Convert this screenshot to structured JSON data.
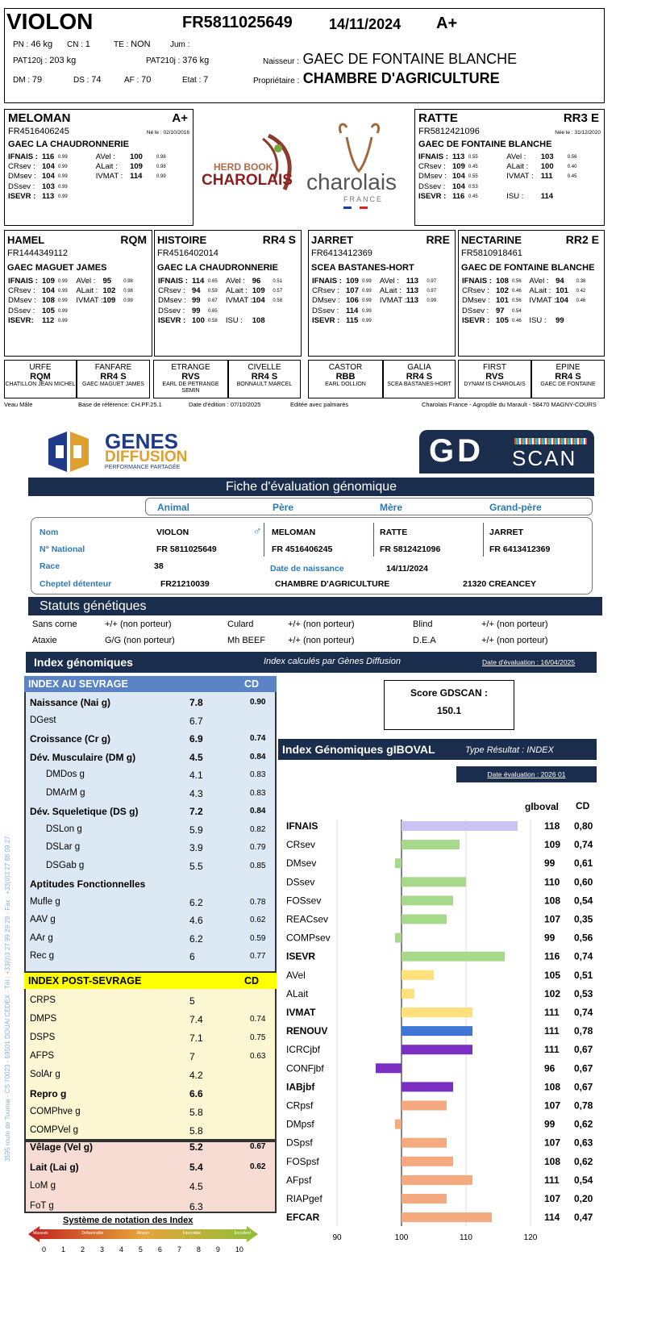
{
  "top": {
    "name": "VIOLON",
    "num": "FR5811025649",
    "date": "14/11/2024",
    "grade": "A+",
    "r1": [
      {
        "l": "PN :",
        "v": "46 kg"
      },
      {
        "l": "CN :",
        "v": "1"
      },
      {
        "l": "TE :",
        "v": "NON"
      },
      {
        "l": "Jum :",
        "v": ""
      }
    ],
    "pat120": {
      "l": "PAT120j :",
      "v": "203 kg"
    },
    "pat210": {
      "l": "PAT210j :",
      "v": "376 kg"
    },
    "r3": [
      {
        "l": "DM :",
        "v": "79"
      },
      {
        "l": "DS :",
        "v": "74"
      },
      {
        "l": "AF :",
        "v": "70"
      },
      {
        "l": "Etat :",
        "v": "7"
      }
    ],
    "naisseur_l": "Naisseur :",
    "naisseur": "GAEC DE FONTAINE BLANCHE",
    "proprio_l": "Propriétaire :",
    "proprio": "CHAMBRE D'AGRICULTURE"
  },
  "logos": {
    "hb1": "HERD BOOK",
    "hb2": "CHAROLAIS",
    "ch1": "charolais",
    "ch2": "FRANCE"
  },
  "parents": [
    {
      "name": "MELOMAN",
      "grade": "A+",
      "num": "FR4516406245",
      "born": "Né le : 02/10/2016",
      "owner": "GAEC LA CHAUDRONNERIE",
      "rows": [
        [
          "IFNAIS :",
          "116",
          "0.99",
          "AVel :",
          "100",
          "0.98"
        ],
        [
          "CRsev :",
          "104",
          "0.99",
          "ALait :",
          "109",
          "0.98"
        ],
        [
          "DMsev :",
          "104",
          "0.99",
          "IVMAT :",
          "114",
          "0.99"
        ],
        [
          "DSsev :",
          "103",
          "0.99",
          "",
          "",
          ""
        ],
        [
          "ISEVR :",
          "113",
          "0.99",
          "",
          "",
          ""
        ]
      ]
    },
    {
      "name": "RATTE",
      "grade": "RR3 E",
      "num": "FR5812421096",
      "born": "Née le : 31/12/2020",
      "owner": "GAEC DE FONTAINE BLANCHE",
      "rows": [
        [
          "IFNAIS :",
          "113",
          "0.55",
          "AVel :",
          "103",
          "0.56"
        ],
        [
          "CRsev :",
          "109",
          "0.45",
          "ALait :",
          "100",
          "0.40"
        ],
        [
          "DMsev :",
          "104",
          "0.55",
          "IVMAT :",
          "111",
          "0.45"
        ],
        [
          "DSsev :",
          "104",
          "0.53",
          "",
          "",
          ""
        ],
        [
          "ISEVR :",
          "116",
          "0.45",
          "ISU :",
          "114",
          ""
        ]
      ]
    }
  ],
  "grand": [
    {
      "name": "HAMEL",
      "grade": "RQM",
      "num": "FR1444349112",
      "owner": "GAEC MAGUET JAMES",
      "rows": [
        [
          "IFNAIS :",
          "109",
          "0.99",
          "AVel :",
          "95",
          "0.98"
        ],
        [
          "CRsev :",
          "104",
          "0.99",
          "ALait :",
          "102",
          "0.98"
        ],
        [
          "DMsev :",
          "108",
          "0.99",
          "IVMAT :",
          "109",
          "0.99"
        ],
        [
          "DSsev :",
          "105",
          "0.99",
          "",
          "",
          ""
        ],
        [
          "ISEVR:",
          "112",
          "0.99",
          "",
          "",
          ""
        ]
      ]
    },
    {
      "name": "HISTOIRE",
      "grade": "RR4 S",
      "num": "FR4516402014",
      "owner": "GAEC LA CHAUDRONNERIE",
      "rows": [
        [
          "IFNAIS :",
          "114",
          "0.65",
          "AVel :",
          "96",
          "0.51"
        ],
        [
          "CRsev :",
          "94",
          "0.59",
          "ALait :",
          "109",
          "0.57"
        ],
        [
          "DMsev :",
          "99",
          "0.67",
          "IVMAT :",
          "104",
          "0.58"
        ],
        [
          "DSsev :",
          "99",
          "0.65",
          "",
          "",
          ""
        ],
        [
          "ISEVR :",
          "100",
          "0.58",
          "ISU :",
          "108",
          ""
        ]
      ]
    },
    {
      "name": "JARRET",
      "grade": "RRE",
      "num": "FR6413412369",
      "owner": "SCEA BASTANES-HORT",
      "rows": [
        [
          "IFNAIS :",
          "109",
          "0.99",
          "AVel :",
          "113",
          "0.97"
        ],
        [
          "CRsev :",
          "107",
          "0.99",
          "ALait :",
          "113",
          "0.97"
        ],
        [
          "DMsev :",
          "106",
          "0.99",
          "IVMAT :",
          "113",
          "0.99"
        ],
        [
          "DSsev :",
          "114",
          "0.99",
          "",
          "",
          ""
        ],
        [
          "ISEVR :",
          "115",
          "0.99",
          "",
          "",
          ""
        ]
      ]
    },
    {
      "name": "NECTARINE",
      "grade": "RR2 E",
      "num": "FR5810918461",
      "owner": "GAEC DE FONTAINE BLANCHE",
      "rows": [
        [
          "IFNAIS :",
          "108",
          "0.56",
          "AVel :",
          "94",
          "0.38"
        ],
        [
          "CRsev :",
          "102",
          "0.46",
          "ALait :",
          "101",
          "0.42"
        ],
        [
          "DMsev :",
          "101",
          "0.56",
          "IVMAT :",
          "104",
          "0.46"
        ],
        [
          "DSsev :",
          "97",
          "0.54",
          "",
          "",
          ""
        ],
        [
          "ISEVR :",
          "105",
          "0.46",
          "ISU :",
          "99",
          ""
        ]
      ]
    }
  ],
  "ggp": [
    {
      "n": "URFE",
      "g": "RQM",
      "o": "CHATILLON JEAN MICHEL"
    },
    {
      "n": "FANFARE",
      "g": "RR4 S",
      "o": "GAEC MAGUET JAMES"
    },
    {
      "n": "ETRANGE",
      "g": "RVS",
      "o": "EARL DE PETRANGE SEMIN"
    },
    {
      "n": "CIVELLE",
      "g": "RR4 S",
      "o": "BONNAULT MARCEL"
    },
    {
      "n": "CASTOR",
      "g": "RBB",
      "o": "EARL DOLLION"
    },
    {
      "n": "GALIA",
      "g": "RR4 S",
      "o": "SCEA BASTANES-HORT"
    },
    {
      "n": "FIRST",
      "g": "RVS",
      "o": "DYNAM IS CHAROLAIS"
    },
    {
      "n": "EPINE",
      "g": "RR4 S",
      "o": "GAEC DE FONTAINE"
    }
  ],
  "footer": {
    "a": "Veau Mâle",
    "b": "Base de référence: CH.PF.25.1",
    "c": "Date d'édition : 07/10/2025",
    "d": "Editée avec palmarès",
    "e": "Charolais France - Agropôle du Marault - 58470 MAGNY-COURS"
  },
  "gd": {
    "logo1": "GENES",
    "logo2": "DIFFUSION",
    "logo3": "PERFORMANCE PARTAGÉE",
    "scan1": "GD",
    "scan2": "SCAN",
    "fiche": "Fiche d'évaluation génomique",
    "cols": [
      "Animal",
      "Père",
      "Mère",
      "Grand-père"
    ],
    "nom_l": "Nom",
    "nat_l": "N° National",
    "race_l": "Race",
    "chep_l": "Cheptel détenteur",
    "nom": [
      "VIOLON",
      "MELOMAN",
      "RATTE",
      "JARRET"
    ],
    "nat": [
      "FR 5811025649",
      "FR 4516406245",
      "FR 5812421096",
      "FR 6413412369"
    ],
    "race": "38",
    "dn_l": "Date de naissance",
    "dn": "14/11/2024",
    "chep": "FR21210039",
    "chep2": "CHAMBRE D'AGRICULTURE",
    "chep3": "21320 CREANCEY",
    "statuts": "Statuts génétiques",
    "st": [
      [
        "Sans corne",
        "+/+ (non porteur)",
        "Culard",
        "+/+ (non porteur)",
        "Blind",
        "+/+ (non porteur)"
      ],
      [
        "Ataxie",
        "G/G (non porteur)",
        "Mh BEEF",
        "+/+ (non porteur)",
        "D.E.A",
        "+/+ (non porteur)"
      ]
    ],
    "idx_title": "Index génomiques",
    "idx_calc": "Index calculés par Gènes Diffusion",
    "idx_date": "Date d'évaluation : 16/04/2025",
    "sev_title": "INDEX AU SEVRAGE",
    "cd": "CD",
    "sev": [
      {
        "l": "Naissance (Nai g)",
        "v": "7.8",
        "c": "0.90",
        "b": 1,
        "i": 0
      },
      {
        "l": "DGest",
        "v": "6.7",
        "c": "",
        "b": 0,
        "i": 0
      },
      {
        "l": "Croissance (Cr g)",
        "v": "6.9",
        "c": "0.74",
        "b": 1,
        "i": 0
      },
      {
        "l": "Dév. Musculaire (DM g)",
        "v": "4.5",
        "c": "0.84",
        "b": 1,
        "i": 0
      },
      {
        "l": "DMDos g",
        "v": "4.1",
        "c": "0.83",
        "b": 0,
        "i": 1
      },
      {
        "l": "DMArM g",
        "v": "4.3",
        "c": "0.83",
        "b": 0,
        "i": 1
      },
      {
        "l": "Dév. Squeletique (DS g)",
        "v": "7.2",
        "c": "0.84",
        "b": 1,
        "i": 0
      },
      {
        "l": "DSLon g",
        "v": "5.9",
        "c": "0.82",
        "b": 0,
        "i": 1
      },
      {
        "l": "DSLar g",
        "v": "3.9",
        "c": "0.79",
        "b": 0,
        "i": 1
      },
      {
        "l": "DSGab g",
        "v": "5.5",
        "c": "0.85",
        "b": 0,
        "i": 1
      },
      {
        "l": "Aptitudes Fonctionnelles",
        "v": "",
        "c": "",
        "b": 1,
        "i": 0
      },
      {
        "l": "Mufle g",
        "v": "6.2",
        "c": "0.78",
        "b": 0,
        "i": 0
      },
      {
        "l": "AAV g",
        "v": "4.6",
        "c": "0.62",
        "b": 0,
        "i": 0
      },
      {
        "l": "AAr g",
        "v": "6.2",
        "c": "0.59",
        "b": 0,
        "i": 0
      },
      {
        "l": "Rec g",
        "v": "6",
        "c": "0.77",
        "b": 0,
        "i": 0
      }
    ],
    "post_title": "INDEX POST-SEVRAGE",
    "post": [
      {
        "l": "CRPS",
        "v": "5",
        "c": "",
        "b": 0
      },
      {
        "l": "DMPS",
        "v": "7.4",
        "c": "0.74",
        "b": 0
      },
      {
        "l": "DSPS",
        "v": "7.1",
        "c": "0.75",
        "b": 0
      },
      {
        "l": "AFPS",
        "v": "7",
        "c": "0.63",
        "b": 0
      },
      {
        "l": "SolAr g",
        "v": "4.2",
        "c": "",
        "b": 0
      },
      {
        "l": "Repro g",
        "v": "6.6",
        "c": "",
        "b": 1
      },
      {
        "l": "COMPhve g",
        "v": "5.8",
        "c": "",
        "b": 0
      },
      {
        "l": "COMPVel g",
        "v": "5.8",
        "c": "",
        "b": 0
      }
    ],
    "vel": [
      {
        "l": "Vêlage (Vel g)",
        "v": "5.2",
        "c": "0.67",
        "b": 1
      },
      {
        "l": "Lait (Lai g)",
        "v": "5.4",
        "c": "0.62",
        "b": 1
      },
      {
        "l": "LoM g",
        "v": "4.5",
        "c": "",
        "b": 0
      },
      {
        "l": "FoT g",
        "v": "6.3",
        "c": "",
        "b": 0
      }
    ],
    "notation": "Système de notation des Index",
    "scale": [
      "Mauvais",
      "Défavorable",
      "Moyen",
      "Favorable",
      "Excellent"
    ],
    "scale_nums": [
      "0",
      "1",
      "2",
      "3",
      "4",
      "5",
      "6",
      "7",
      "8",
      "9",
      "10"
    ],
    "score_l": "Score GDSCAN :",
    "score": "150.1",
    "gib_title": "Index Génomiques gIBOVAL",
    "gib_type": "Type Résultat : INDEX",
    "gib_date": "Date évaluation : 2026 01",
    "col_g": "glboval",
    "col_cd": "CD",
    "side": "3595 route de Tournai - CS 70023 - 59501 DOUAI CEDEX - Tél : +33(0)3 27 99 29 29 - Fax : +33(0)3 27 88 09 27"
  },
  "chart_data": {
    "type": "bar",
    "xlim": [
      90,
      120
    ],
    "xticks": [
      "90",
      "100",
      "110",
      "120"
    ],
    "bars": [
      {
        "k": "IFNAIS",
        "v": 118,
        "cd": "0,80",
        "b": 1,
        "col": "#c9c3f2"
      },
      {
        "k": "CRsev",
        "v": 109,
        "cd": "0,74",
        "b": 0,
        "col": "#a6d98a"
      },
      {
        "k": "DMsev",
        "v": 99,
        "cd": "0,61",
        "b": 0,
        "col": "#a6d98a"
      },
      {
        "k": "DSsev",
        "v": 110,
        "cd": "0,60",
        "b": 0,
        "col": "#a6d98a"
      },
      {
        "k": "FOSsev",
        "v": 108,
        "cd": "0,54",
        "b": 0,
        "col": "#a6d98a"
      },
      {
        "k": "REACsev",
        "v": 107,
        "cd": "0,35",
        "b": 0,
        "col": "#a6d98a"
      },
      {
        "k": "COMPsev",
        "v": 99,
        "cd": "0,56",
        "b": 0,
        "col": "#a6d98a"
      },
      {
        "k": "ISEVR",
        "v": 116,
        "cd": "0,74",
        "b": 1,
        "col": "#a6d98a"
      },
      {
        "k": "AVel",
        "v": 105,
        "cd": "0,51",
        "b": 0,
        "col": "#ffe07a"
      },
      {
        "k": "ALait",
        "v": 102,
        "cd": "0,53",
        "b": 0,
        "col": "#ffe07a"
      },
      {
        "k": "IVMAT",
        "v": 111,
        "cd": "0,74",
        "b": 1,
        "col": "#ffe07a"
      },
      {
        "k": "RENOUV",
        "v": 111,
        "cd": "0,78",
        "b": 1,
        "col": "#3f75d6"
      },
      {
        "k": "ICRCjbf",
        "v": 111,
        "cd": "0,67",
        "b": 0,
        "col": "#7a2fc2"
      },
      {
        "k": "CONFjbf",
        "v": 96,
        "cd": "0,67",
        "b": 0,
        "col": "#7a2fc2"
      },
      {
        "k": "IABjbf",
        "v": 108,
        "cd": "0,67",
        "b": 1,
        "col": "#7a2fc2"
      },
      {
        "k": "CRpsf",
        "v": 107,
        "cd": "0,78",
        "b": 0,
        "col": "#f4a97e"
      },
      {
        "k": "DMpsf",
        "v": 99,
        "cd": "0,62",
        "b": 0,
        "col": "#f4a97e"
      },
      {
        "k": "DSpsf",
        "v": 107,
        "cd": "0,63",
        "b": 0,
        "col": "#f4a97e"
      },
      {
        "k": "FOSpsf",
        "v": 108,
        "cd": "0,62",
        "b": 0,
        "col": "#f4a97e"
      },
      {
        "k": "AFpsf",
        "v": 111,
        "cd": "0,54",
        "b": 0,
        "col": "#f4a97e"
      },
      {
        "k": "RIAPgef",
        "v": 107,
        "cd": "0,20",
        "b": 0,
        "col": "#f4a97e"
      },
      {
        "k": "EFCAR",
        "v": 114,
        "cd": "0,47",
        "b": 1,
        "col": "#f4a97e"
      }
    ]
  }
}
